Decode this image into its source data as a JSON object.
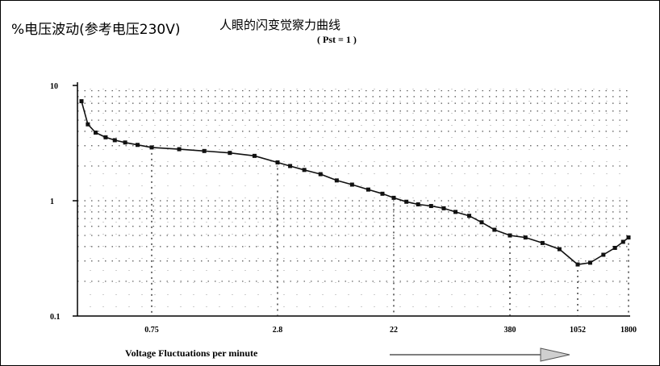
{
  "corner_label": "%电压波动(参考电压230V)",
  "chart_data": {
    "type": "line",
    "title": "人眼的闪变觉察力曲线",
    "subtitle": "( Pst = 1 )",
    "xlabel": "Voltage Fluctuations per minute",
    "ylabel": "",
    "y_scale": "log",
    "ylim": [
      0.1,
      10
    ],
    "y_ticks": [
      "10",
      "1",
      "0.1"
    ],
    "x_scale": "log",
    "xlim": [
      0.1,
      1800
    ],
    "x_ticks": [
      "0.75",
      "2.8",
      "22",
      "380",
      "1052",
      "1800"
    ],
    "grid": true,
    "series": [
      {
        "x": [
          0.1,
          0.12,
          0.15,
          0.2,
          0.26,
          0.35,
          0.5,
          0.75,
          1.0,
          1.3,
          1.7,
          2.2,
          2.8,
          3.5,
          4.5,
          6.0,
          8.0,
          10.5,
          14,
          18,
          22,
          30,
          40,
          55,
          75,
          100,
          140,
          190,
          260,
          380,
          480,
          620,
          800,
          1052,
          1200,
          1380,
          1560,
          1700,
          1800
        ],
        "values": [
          7.3,
          4.6,
          3.9,
          3.55,
          3.35,
          3.2,
          3.05,
          2.9,
          2.8,
          2.7,
          2.6,
          2.45,
          2.15,
          2.0,
          1.85,
          1.7,
          1.5,
          1.38,
          1.25,
          1.15,
          1.06,
          0.98,
          0.93,
          0.9,
          0.86,
          0.8,
          0.74,
          0.65,
          0.56,
          0.5,
          0.48,
          0.43,
          0.38,
          0.28,
          0.29,
          0.34,
          0.39,
          0.44,
          0.48
        ]
      }
    ]
  }
}
